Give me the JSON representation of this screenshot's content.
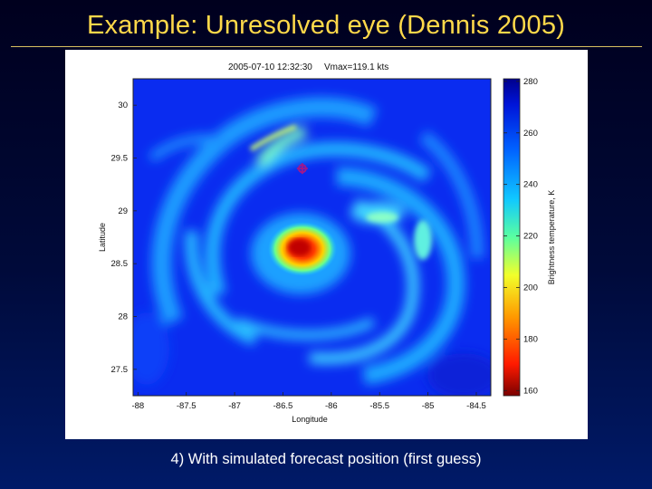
{
  "slide": {
    "title": "Example: Unresolved eye (Dennis 2005)",
    "caption": "4) With simulated forecast position (first guess)"
  },
  "figure": {
    "header_time": "2005-07-10 12:32:30",
    "header_vmax": "Vmax=119.1 kts",
    "xlabel": "Longitude",
    "ylabel": "Latitude",
    "colorbar_label": "Brightness temperature, K",
    "x_ticks": [
      "-88",
      "-87.5",
      "-87",
      "-86.5",
      "-86",
      "-85.5",
      "-85",
      "-84.5"
    ],
    "y_ticks": [
      "30",
      "29.5",
      "29",
      "28.5",
      "28",
      "27.5"
    ],
    "colorbar_ticks": [
      "280",
      "260",
      "240",
      "220",
      "200",
      "180",
      "160"
    ],
    "marker": {
      "lon": -86.3,
      "lat": 29.4,
      "color": "#a0188c"
    }
  }
}
